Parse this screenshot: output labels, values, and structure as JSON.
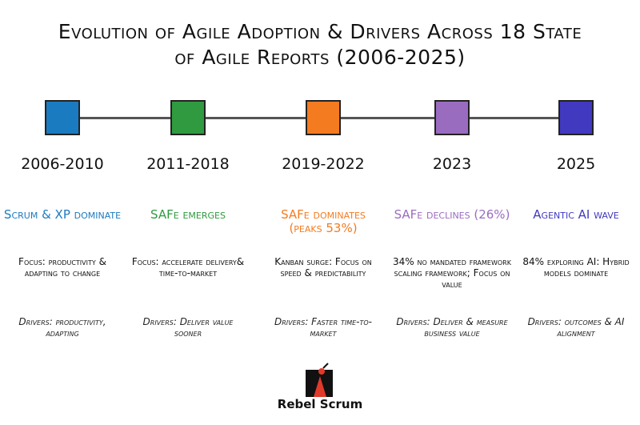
{
  "header": {
    "title": "Evolution of Agile Adoption & Drivers Across 18 State of Agile Reports (2006-2025)"
  },
  "periods": [
    {
      "years": "2006-2010",
      "color": "#1b7bc0",
      "headline": "Scrum & XP dominate",
      "focus": "Focus: productivity & adapting to change",
      "drivers": "Drivers: productivity, adapting"
    },
    {
      "years": "2011-2018",
      "color": "#2f9a3f",
      "headline": "SAFe emerges",
      "focus": "Focus: accelerate delivery& time-to-market",
      "drivers": "Drivers: Deliver value sooner"
    },
    {
      "years": "2019-2022",
      "color": "#f47b20",
      "headline": "SAFe dominates (peaks 53%)",
      "focus": "Kanban surge: Focus on speed & predictability",
      "drivers": "Drivers: Faster time-to-market"
    },
    {
      "years": "2023",
      "color": "#9a6cc0",
      "headline": "SAFe declines (26%)",
      "focus": "34% no mandated framework scaling framework; Focus on value",
      "drivers": "Drivers: Deliver & measure business value"
    },
    {
      "years": "2025",
      "color": "#4139c0",
      "headline": "Agentic AI wave",
      "focus": "84% exploring AI: Hybrid models dominate",
      "drivers": "Drivers: outcomes & AI alignment"
    }
  ],
  "footer": {
    "brand": "Rebel Scrum"
  }
}
